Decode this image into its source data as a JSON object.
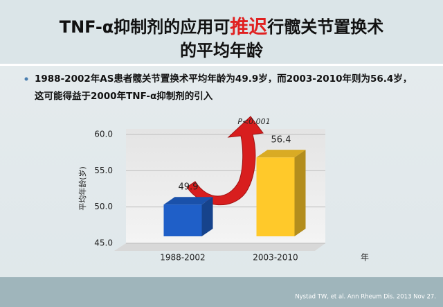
{
  "slide": {
    "title": [
      "TNF-α抑制剂的应用可",
      "推迟",
      "行髋关节置换术",
      "的平均年龄"
    ],
    "bullet": [
      "1988-2002年AS患者髋关节置换术平均年龄为49.9岁，而2003-2010年则为56.4岁，",
      "这可能得益于2000年TNF-α抑制剂的引入"
    ],
    "citation": "Nystad TW, et al. Ann Rheum Dis. 2013 Nov 27."
  },
  "chart_data": {
    "type": "bar",
    "categories": [
      "1988-2002",
      "2003-2010"
    ],
    "values": [
      49.9,
      56.4
    ],
    "colors": [
      "#1f5fc8",
      "#ffc92a"
    ],
    "ylim": [
      45,
      60
    ],
    "yticks": [
      {
        "value": 45,
        "label": "45.0"
      },
      {
        "value": 50,
        "label": "50.0"
      },
      {
        "value": 55,
        "label": "55.0"
      },
      {
        "value": 60,
        "label": "60.0"
      }
    ],
    "ylabel": "平均年龄(岁)",
    "xlabel": "年",
    "annotation": "P<0.001",
    "grid": true
  }
}
